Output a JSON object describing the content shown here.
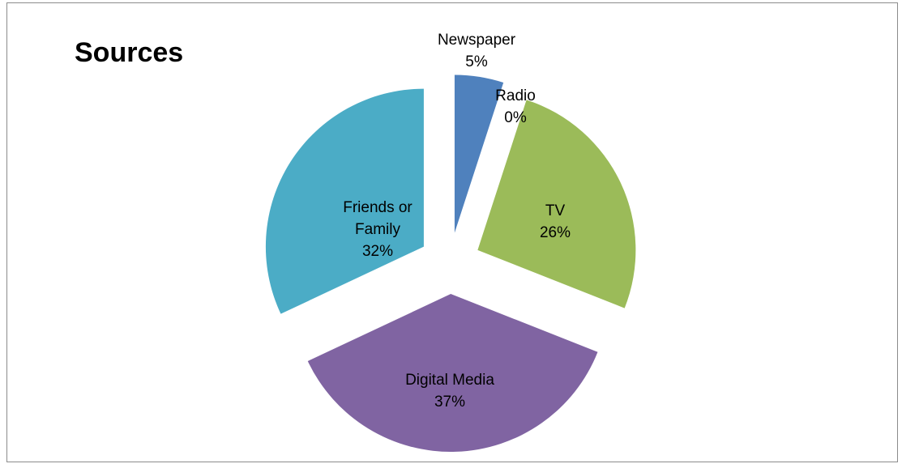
{
  "chart_data": {
    "type": "pie",
    "title": "Sources",
    "exploded": true,
    "legend": "none",
    "slices": [
      {
        "name": "Newspaper",
        "label_lines": [
          "Newspaper"
        ],
        "value": 5,
        "percent_label": "5%",
        "color": "#4f81bd"
      },
      {
        "name": "Radio",
        "label_lines": [
          "Radio"
        ],
        "value": 0,
        "percent_label": "0%",
        "color": "#c0504d"
      },
      {
        "name": "TV",
        "label_lines": [
          "TV"
        ],
        "value": 26,
        "percent_label": "26%",
        "color": "#9bbb59"
      },
      {
        "name": "Digital Media",
        "label_lines": [
          "Digital Media"
        ],
        "value": 37,
        "percent_label": "37%",
        "color": "#8064a2"
      },
      {
        "name": "Friends or Family",
        "label_lines": [
          "Friends or",
          "Family"
        ],
        "value": 32,
        "percent_label": "32%",
        "color": "#4bacc6"
      }
    ]
  }
}
